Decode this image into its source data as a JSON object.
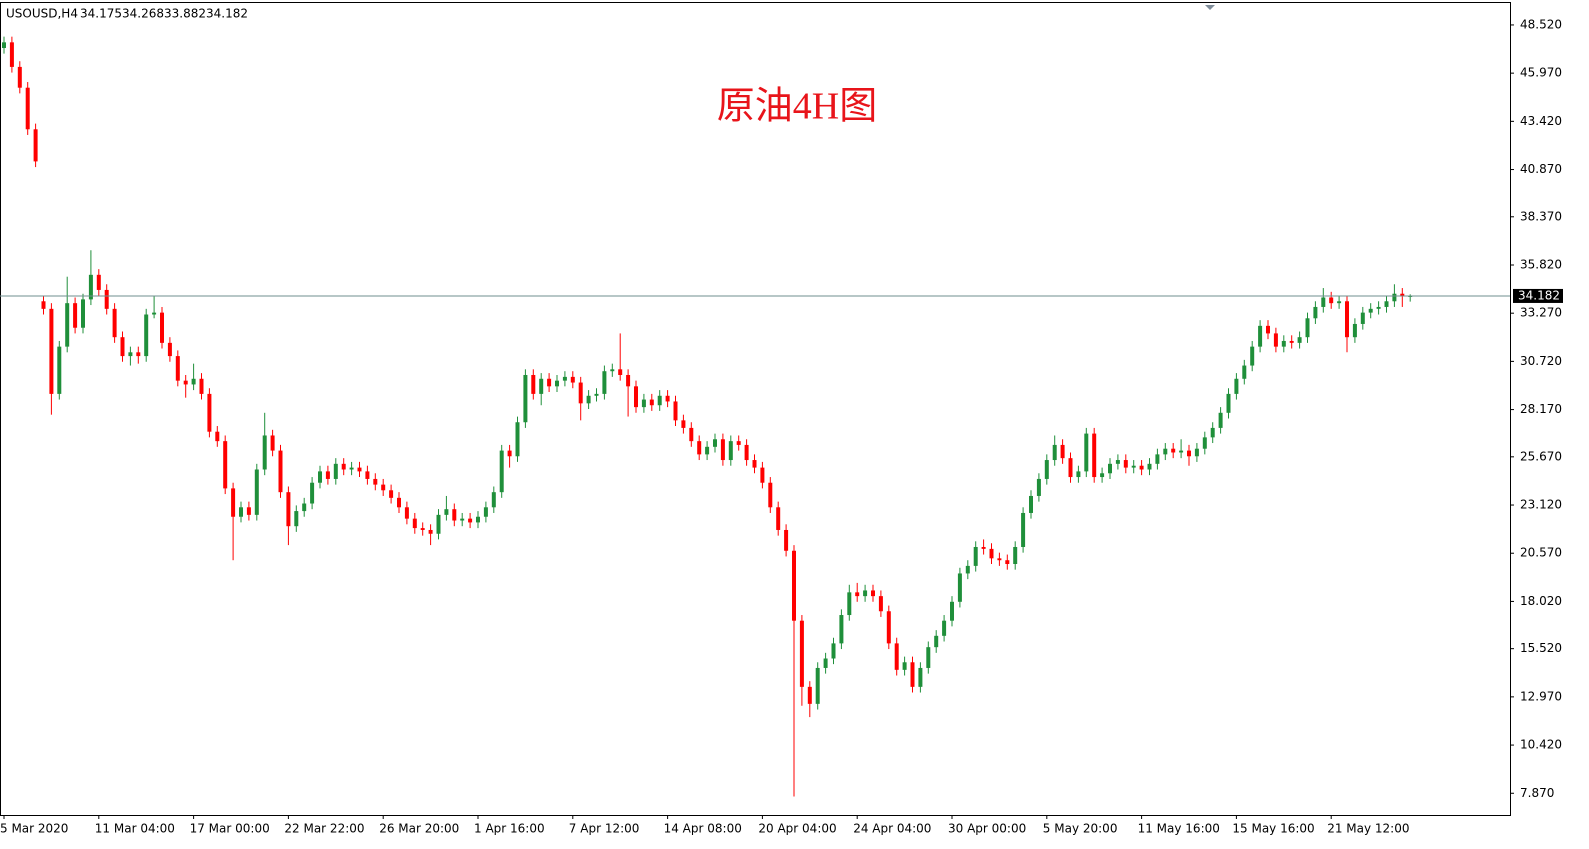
{
  "chart_data": {
    "type": "candlestick",
    "symbol": "USOUSD,H4",
    "title": "原油4H图",
    "up_color": "#1f8f3a",
    "down_color": "#ff0000",
    "last_price_color": "#6f8f8f",
    "ylim": [
      6.72,
      49.84
    ],
    "yticks": [
      {
        "value": 48.52,
        "label": "48.520"
      },
      {
        "value": 45.97,
        "label": "45.970"
      },
      {
        "value": 43.42,
        "label": "43.420"
      },
      {
        "value": 40.87,
        "label": "40.870"
      },
      {
        "value": 38.37,
        "label": "38.370"
      },
      {
        "value": 35.82,
        "label": "35.820"
      },
      {
        "value": 33.27,
        "label": "33.270"
      },
      {
        "value": 30.72,
        "label": "30.720"
      },
      {
        "value": 28.17,
        "label": "28.170"
      },
      {
        "value": 25.67,
        "label": "25.670"
      },
      {
        "value": 23.12,
        "label": "23.120"
      },
      {
        "value": 20.57,
        "label": "20.570"
      },
      {
        "value": 18.02,
        "label": "18.020"
      },
      {
        "value": 15.52,
        "label": "15.520"
      },
      {
        "value": 12.97,
        "label": "12.970"
      },
      {
        "value": 10.42,
        "label": "10.420"
      },
      {
        "value": 7.87,
        "label": "7.870"
      }
    ],
    "categories": [
      "5 Mar 2020",
      null,
      null,
      null,
      null,
      null,
      null,
      null,
      null,
      null,
      null,
      null,
      "11 Mar 04:00",
      null,
      null,
      null,
      null,
      null,
      null,
      null,
      null,
      null,
      null,
      null,
      "17 Mar 00:00",
      null,
      null,
      null,
      null,
      null,
      null,
      null,
      null,
      null,
      null,
      null,
      "22 Mar 22:00",
      null,
      null,
      null,
      null,
      null,
      null,
      null,
      null,
      null,
      null,
      null,
      "26 Mar 20:00",
      null,
      null,
      null,
      null,
      null,
      null,
      null,
      null,
      null,
      null,
      null,
      "1 Apr 16:00",
      null,
      null,
      null,
      null,
      null,
      null,
      null,
      null,
      null,
      null,
      null,
      "7 Apr 12:00",
      null,
      null,
      null,
      null,
      null,
      null,
      null,
      null,
      null,
      null,
      null,
      "14 Apr 08:00",
      null,
      null,
      null,
      null,
      null,
      null,
      null,
      null,
      null,
      null,
      null,
      "20 Apr 04:00",
      null,
      null,
      null,
      null,
      null,
      null,
      null,
      null,
      null,
      null,
      null,
      "24 Apr 04:00",
      null,
      null,
      null,
      null,
      null,
      null,
      null,
      null,
      null,
      null,
      null,
      "30 Apr 00:00",
      null,
      null,
      null,
      null,
      null,
      null,
      null,
      null,
      null,
      null,
      null,
      "5 May 20:00",
      null,
      null,
      null,
      null,
      null,
      null,
      null,
      null,
      null,
      null,
      null,
      "11 May 16:00",
      null,
      null,
      null,
      null,
      null,
      null,
      null,
      null,
      null,
      null,
      null,
      "15 May 16:00",
      null,
      null,
      null,
      null,
      null,
      null,
      null,
      null,
      null,
      null,
      null,
      "21 May 12:00",
      null,
      null,
      null,
      null,
      null,
      null,
      null,
      null,
      null,
      null
    ],
    "open": [
      47.3,
      47.6,
      46.3,
      45.2,
      43.0,
      33.9,
      33.5,
      29.0,
      31.5,
      33.8,
      32.5,
      34.0,
      35.3,
      34.5,
      33.5,
      32.0,
      31.0,
      31.2,
      31.0,
      33.2,
      33.3,
      31.7,
      31.0,
      29.7,
      29.5,
      29.8,
      29.0,
      27.0,
      26.5,
      24.0,
      22.5,
      23.0,
      22.6,
      25.0,
      26.8,
      26.0,
      23.8,
      22.0,
      22.8,
      23.2,
      24.3,
      24.9,
      24.5,
      25.3,
      25.0,
      25.1,
      24.9,
      24.5,
      24.2,
      23.9,
      23.5,
      23.0,
      22.4,
      21.9,
      21.8,
      21.6,
      22.6,
      22.9,
      22.3,
      22.4,
      22.2,
      22.5,
      23.0,
      23.8,
      26.0,
      25.7,
      27.5,
      30.0,
      29.0,
      29.8,
      29.4,
      29.7,
      29.9,
      29.6,
      28.5,
      28.9,
      29.0,
      30.2,
      30.3,
      30.0,
      29.4,
      28.3,
      28.7,
      28.4,
      28.9,
      28.6,
      27.6,
      27.2,
      26.5,
      25.8,
      26.2,
      26.6,
      25.5,
      26.5,
      26.3,
      25.5,
      25.1,
      24.3,
      23.0,
      21.8,
      20.7,
      17.0,
      13.5,
      12.6,
      14.5,
      15.0,
      15.8,
      17.3,
      18.5,
      18.3,
      18.6,
      18.3,
      17.5,
      15.8,
      14.4,
      14.8,
      13.5,
      14.5,
      15.6,
      16.2,
      17.0,
      18.0,
      19.5,
      19.9,
      20.9,
      20.8,
      20.3,
      20.2,
      20.0,
      20.9,
      22.7,
      23.6,
      24.5,
      25.5,
      26.3,
      25.6,
      24.6,
      24.9,
      26.9,
      24.6,
      24.8,
      25.3,
      25.5,
      25.1,
      25.2,
      25.0,
      25.3,
      25.8,
      26.1,
      25.9,
      26.0,
      25.7,
      26.1,
      26.7,
      27.2,
      28.0,
      29.0,
      29.8,
      30.5,
      31.5,
      32.6,
      32.2,
      31.5,
      31.8,
      31.7,
      32.0,
      33.0,
      33.6,
      34.1,
      33.8,
      33.9,
      32.0,
      32.7,
      33.3,
      33.5,
      33.6,
      33.9,
      34.3,
      34.175
    ],
    "high": [
      47.9,
      47.9,
      46.6,
      45.5,
      43.3,
      34.2,
      33.8,
      31.8,
      35.2,
      34.1,
      34.3,
      36.6,
      35.6,
      34.8,
      33.8,
      32.3,
      31.5,
      31.5,
      33.5,
      34.2,
      33.6,
      32.0,
      31.3,
      30.0,
      30.6,
      30.1,
      29.3,
      27.3,
      26.8,
      24.3,
      23.3,
      23.3,
      25.3,
      28.0,
      27.1,
      26.3,
      24.1,
      23.1,
      23.5,
      24.6,
      25.2,
      25.2,
      25.6,
      25.6,
      25.4,
      25.4,
      25.2,
      24.8,
      24.5,
      24.2,
      23.8,
      23.3,
      22.7,
      22.2,
      22.1,
      22.9,
      23.6,
      23.2,
      22.7,
      22.7,
      22.8,
      23.3,
      24.1,
      26.3,
      26.3,
      27.8,
      30.3,
      30.3,
      30.1,
      30.1,
      30.0,
      30.2,
      30.2,
      29.9,
      29.2,
      29.3,
      30.5,
      30.6,
      32.2,
      30.3,
      29.7,
      29.0,
      29.0,
      29.2,
      29.2,
      28.9,
      27.9,
      27.5,
      26.8,
      26.5,
      26.9,
      26.9,
      26.8,
      26.8,
      26.6,
      25.8,
      25.4,
      24.6,
      23.3,
      22.1,
      21.0,
      17.3,
      13.8,
      14.8,
      15.3,
      16.1,
      17.6,
      18.9,
      19.0,
      18.9,
      18.9,
      18.6,
      17.8,
      16.1,
      15.1,
      15.1,
      14.8,
      15.9,
      16.5,
      17.3,
      18.3,
      19.8,
      20.2,
      21.2,
      21.3,
      21.1,
      20.6,
      20.5,
      21.2,
      23.0,
      23.9,
      24.8,
      25.8,
      26.8,
      26.6,
      25.9,
      25.2,
      27.2,
      27.2,
      25.1,
      25.6,
      25.8,
      25.8,
      25.5,
      25.5,
      25.6,
      26.1,
      26.4,
      26.4,
      26.6,
      26.3,
      26.4,
      27.0,
      27.5,
      28.3,
      29.3,
      30.1,
      30.8,
      31.8,
      32.9,
      32.9,
      32.5,
      32.1,
      32.1,
      32.3,
      33.3,
      33.9,
      34.6,
      34.4,
      34.2,
      34.2,
      33.0,
      33.6,
      33.8,
      33.9,
      34.2,
      34.8,
      34.6,
      34.268
    ],
    "low": [
      47.0,
      46.0,
      44.9,
      42.7,
      41.0,
      33.2,
      27.9,
      28.7,
      31.2,
      32.2,
      32.2,
      33.7,
      34.2,
      33.2,
      31.7,
      30.7,
      30.5,
      30.6,
      30.7,
      33.0,
      31.4,
      30.7,
      29.4,
      28.8,
      29.2,
      28.7,
      26.7,
      26.2,
      23.7,
      20.2,
      22.2,
      22.3,
      22.3,
      24.7,
      25.7,
      23.5,
      21.0,
      21.7,
      22.5,
      22.9,
      24.0,
      24.2,
      24.2,
      24.7,
      24.7,
      24.6,
      24.2,
      23.9,
      23.6,
      23.2,
      22.7,
      22.1,
      21.6,
      21.5,
      21.0,
      21.3,
      22.3,
      22.0,
      22.0,
      21.9,
      21.9,
      22.2,
      22.7,
      23.5,
      25.1,
      25.4,
      27.2,
      28.7,
      28.4,
      29.1,
      29.1,
      29.4,
      29.3,
      27.6,
      28.2,
      28.6,
      28.7,
      29.9,
      29.7,
      27.8,
      28.0,
      28.0,
      28.1,
      28.1,
      28.3,
      27.3,
      26.9,
      26.2,
      25.5,
      25.5,
      25.9,
      25.2,
      25.2,
      26.0,
      25.2,
      24.8,
      24.0,
      22.7,
      21.5,
      20.4,
      7.7,
      12.5,
      11.9,
      12.3,
      14.2,
      14.7,
      15.5,
      17.0,
      18.0,
      18.0,
      18.0,
      17.2,
      15.5,
      14.1,
      14.1,
      13.2,
      13.2,
      14.2,
      15.3,
      15.9,
      16.7,
      17.7,
      19.2,
      19.6,
      20.5,
      20.0,
      19.9,
      19.7,
      19.7,
      20.6,
      22.4,
      23.3,
      24.2,
      25.2,
      25.3,
      24.3,
      24.3,
      24.6,
      24.3,
      24.3,
      24.5,
      25.0,
      24.8,
      24.8,
      24.7,
      24.7,
      25.0,
      25.5,
      25.6,
      25.6,
      25.2,
      25.4,
      25.8,
      26.4,
      26.9,
      27.7,
      28.7,
      29.5,
      30.2,
      31.2,
      31.9,
      31.2,
      31.2,
      31.4,
      31.4,
      31.7,
      32.7,
      33.3,
      33.5,
      33.5,
      31.2,
      31.7,
      32.4,
      33.0,
      33.2,
      33.3,
      33.6,
      33.6,
      33.882
    ],
    "close": [
      47.6,
      46.3,
      45.2,
      43.0,
      41.3,
      33.5,
      29.0,
      31.5,
      33.8,
      32.5,
      34.0,
      35.3,
      34.5,
      33.5,
      32.0,
      31.0,
      31.2,
      31.0,
      33.2,
      33.3,
      31.7,
      31.0,
      29.7,
      29.5,
      29.8,
      29.0,
      27.0,
      26.5,
      24.0,
      22.5,
      23.0,
      22.6,
      25.0,
      26.8,
      26.0,
      23.8,
      22.0,
      22.8,
      23.2,
      24.3,
      24.9,
      24.5,
      25.3,
      25.0,
      25.1,
      24.9,
      24.5,
      24.2,
      23.9,
      23.5,
      23.0,
      22.4,
      21.9,
      21.8,
      21.6,
      22.6,
      22.9,
      22.3,
      22.4,
      22.2,
      22.5,
      23.0,
      23.8,
      26.0,
      25.7,
      27.5,
      30.0,
      29.0,
      29.8,
      29.4,
      29.7,
      29.9,
      29.6,
      28.5,
      28.9,
      29.0,
      30.2,
      30.3,
      30.0,
      29.4,
      28.3,
      28.7,
      28.4,
      28.9,
      28.6,
      27.6,
      27.2,
      26.5,
      25.8,
      26.2,
      26.6,
      25.5,
      26.5,
      26.3,
      25.5,
      25.1,
      24.3,
      23.0,
      21.8,
      20.7,
      17.0,
      13.5,
      12.6,
      14.5,
      15.0,
      15.8,
      17.3,
      18.5,
      18.3,
      18.6,
      18.3,
      17.5,
      15.8,
      14.4,
      14.8,
      13.5,
      14.5,
      15.6,
      16.2,
      17.0,
      18.0,
      19.5,
      19.9,
      20.9,
      20.8,
      20.3,
      20.2,
      20.0,
      20.9,
      22.7,
      23.6,
      24.5,
      25.5,
      26.3,
      25.6,
      24.6,
      24.9,
      26.9,
      24.6,
      24.8,
      25.3,
      25.5,
      25.1,
      25.2,
      25.0,
      25.3,
      25.8,
      26.1,
      25.9,
      26.0,
      25.7,
      26.1,
      26.7,
      27.2,
      28.0,
      29.0,
      29.8,
      30.5,
      31.5,
      32.6,
      32.2,
      31.5,
      31.8,
      31.7,
      32.0,
      33.0,
      33.6,
      34.1,
      33.8,
      33.9,
      32.0,
      32.7,
      33.3,
      33.5,
      33.6,
      33.9,
      34.3,
      34.175,
      34.182
    ]
  }
}
